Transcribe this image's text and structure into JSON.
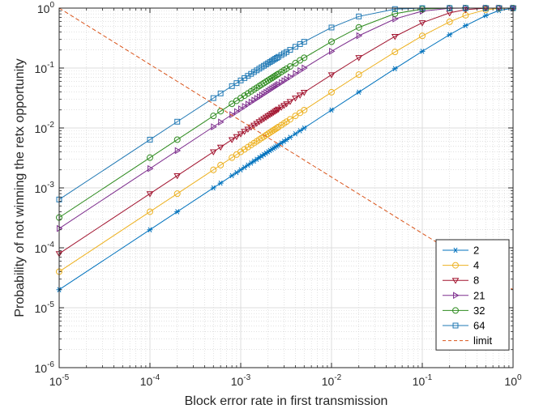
{
  "chart_data": {
    "type": "line",
    "xlabel": "Block error rate in first transmission",
    "ylabel": "Probability of not winning the retx opportunity",
    "xscale": "log",
    "yscale": "log",
    "xlim": [
      1e-05,
      1
    ],
    "ylim": [
      1e-06,
      1
    ],
    "grid": true,
    "minor_grid": true,
    "legend_position": "bottom-right",
    "x_tick_labels": [
      "10^-5",
      "10^-4",
      "10^-3",
      "10^-2",
      "10^-1",
      "10^0"
    ],
    "y_tick_labels": [
      "10^-6",
      "10^-5",
      "10^-4",
      "10^-3",
      "10^-2",
      "10^-1",
      "10^0"
    ],
    "x": [
      1e-05,
      0.0001,
      0.0002,
      0.0005,
      0.0006,
      0.0008,
      0.0009,
      0.001,
      0.0011,
      0.0012,
      0.0013,
      0.0014,
      0.0015,
      0.0016,
      0.0017,
      0.0018,
      0.0019,
      0.002,
      0.0021,
      0.0022,
      0.0023,
      0.0024,
      0.0025,
      0.0026,
      0.0028,
      0.003,
      0.0032,
      0.0035,
      0.004,
      0.0045,
      0.005,
      0.01,
      0.02,
      0.05,
      0.1,
      0.2,
      0.3,
      0.5,
      0.7,
      1
    ],
    "series": [
      {
        "name": "2",
        "color": "#0072BD",
        "marker": "asterisk",
        "k": 2
      },
      {
        "name": "4",
        "color": "#EDB120",
        "marker": "circle",
        "k": 4
      },
      {
        "name": "8",
        "color": "#A2142F",
        "marker": "triangle-down",
        "k": 8
      },
      {
        "name": "21",
        "color": "#7E2F8E",
        "marker": "triangle-right",
        "k": 21
      },
      {
        "name": "32",
        "color": "#2E8B1F",
        "marker": "circle",
        "k": 32
      },
      {
        "name": "64",
        "color": "#1F78B4",
        "marker": "square",
        "k": 64
      },
      {
        "name": "limit",
        "color": "#D95319",
        "marker": "none",
        "style": "dashed",
        "x": [
          1e-05,
          1
        ],
        "y": [
          1,
          2e-05
        ]
      }
    ]
  }
}
